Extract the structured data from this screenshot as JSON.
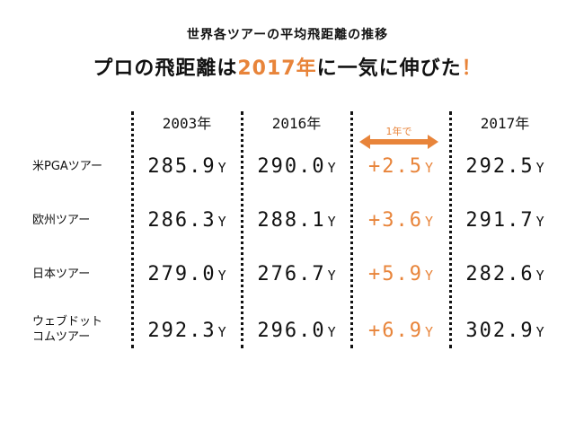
{
  "header": {
    "subtitle": "世界各ツアーの平均飛距離の推移",
    "headline_prefix": "プロの飛距離は",
    "headline_accent": "2017年",
    "headline_suffix": "に一気に伸びた",
    "headline_bang": "！"
  },
  "arrow": {
    "label": "1年で",
    "color": "#e8843a"
  },
  "colors": {
    "accent": "#e8843a",
    "text": "#111111"
  },
  "chart_data": {
    "type": "table",
    "title": "世界各ツアーの平均飛距離の推移",
    "columns": [
      "2003年",
      "2016年",
      "",
      "2017年"
    ],
    "unit": "Y",
    "rows": [
      {
        "label": [
          "米PGAツアー"
        ],
        "v2003": "285.9",
        "v2016": "290.0",
        "diff": "+2.5",
        "v2017": "292.5"
      },
      {
        "label": [
          "欧州ツアー"
        ],
        "v2003": "286.3",
        "v2016": "288.1",
        "diff": "+3.6",
        "v2017": "291.7"
      },
      {
        "label": [
          "日本ツアー"
        ],
        "v2003": "279.0",
        "v2016": "276.7",
        "diff": "+5.9",
        "v2017": "282.6"
      },
      {
        "label": [
          "ウェブドット",
          "コムツアー"
        ],
        "v2003": "292.3",
        "v2016": "296.0",
        "diff": "+6.9",
        "v2017": "302.9"
      }
    ]
  }
}
